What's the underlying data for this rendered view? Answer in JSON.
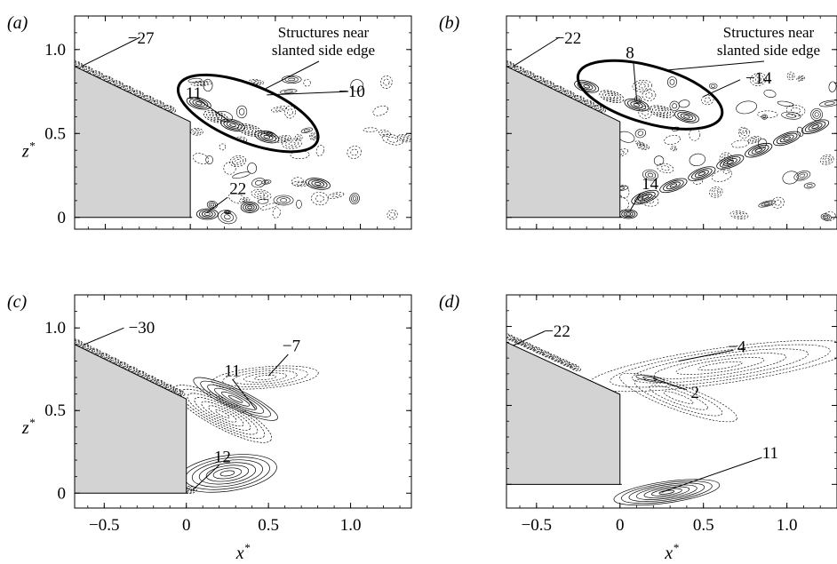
{
  "figure": {
    "x_ticks": [
      "−0.5",
      "0",
      "0.5",
      "1.0"
    ],
    "x_tick_values": [
      -0.5,
      0,
      0.5,
      1.0
    ],
    "z_ticks": [
      "0",
      "0.5",
      "1.0"
    ],
    "z_tick_values": [
      0,
      0.5,
      1.0
    ],
    "x_label_var": "x",
    "z_label_var": "z",
    "label_sup": "*",
    "panels": [
      {
        "tag": "(a)",
        "labels": [
          "−27",
          "11",
          "−10",
          "22"
        ],
        "callout": [
          "Structures near",
          "slanted side edge"
        ]
      },
      {
        "tag": "(b)",
        "labels": [
          "−22",
          "8",
          "−14",
          "14"
        ],
        "callout": [
          "Structures near",
          "slanted side edge"
        ]
      },
      {
        "tag": "(c)",
        "labels": [
          "−30",
          "11",
          "−7",
          "12"
        ]
      },
      {
        "tag": "(d)",
        "labels": [
          "−22",
          "−4",
          "2",
          "11"
        ]
      }
    ]
  },
  "colors": {
    "body": "#d3d3d3",
    "line": "#000000"
  }
}
